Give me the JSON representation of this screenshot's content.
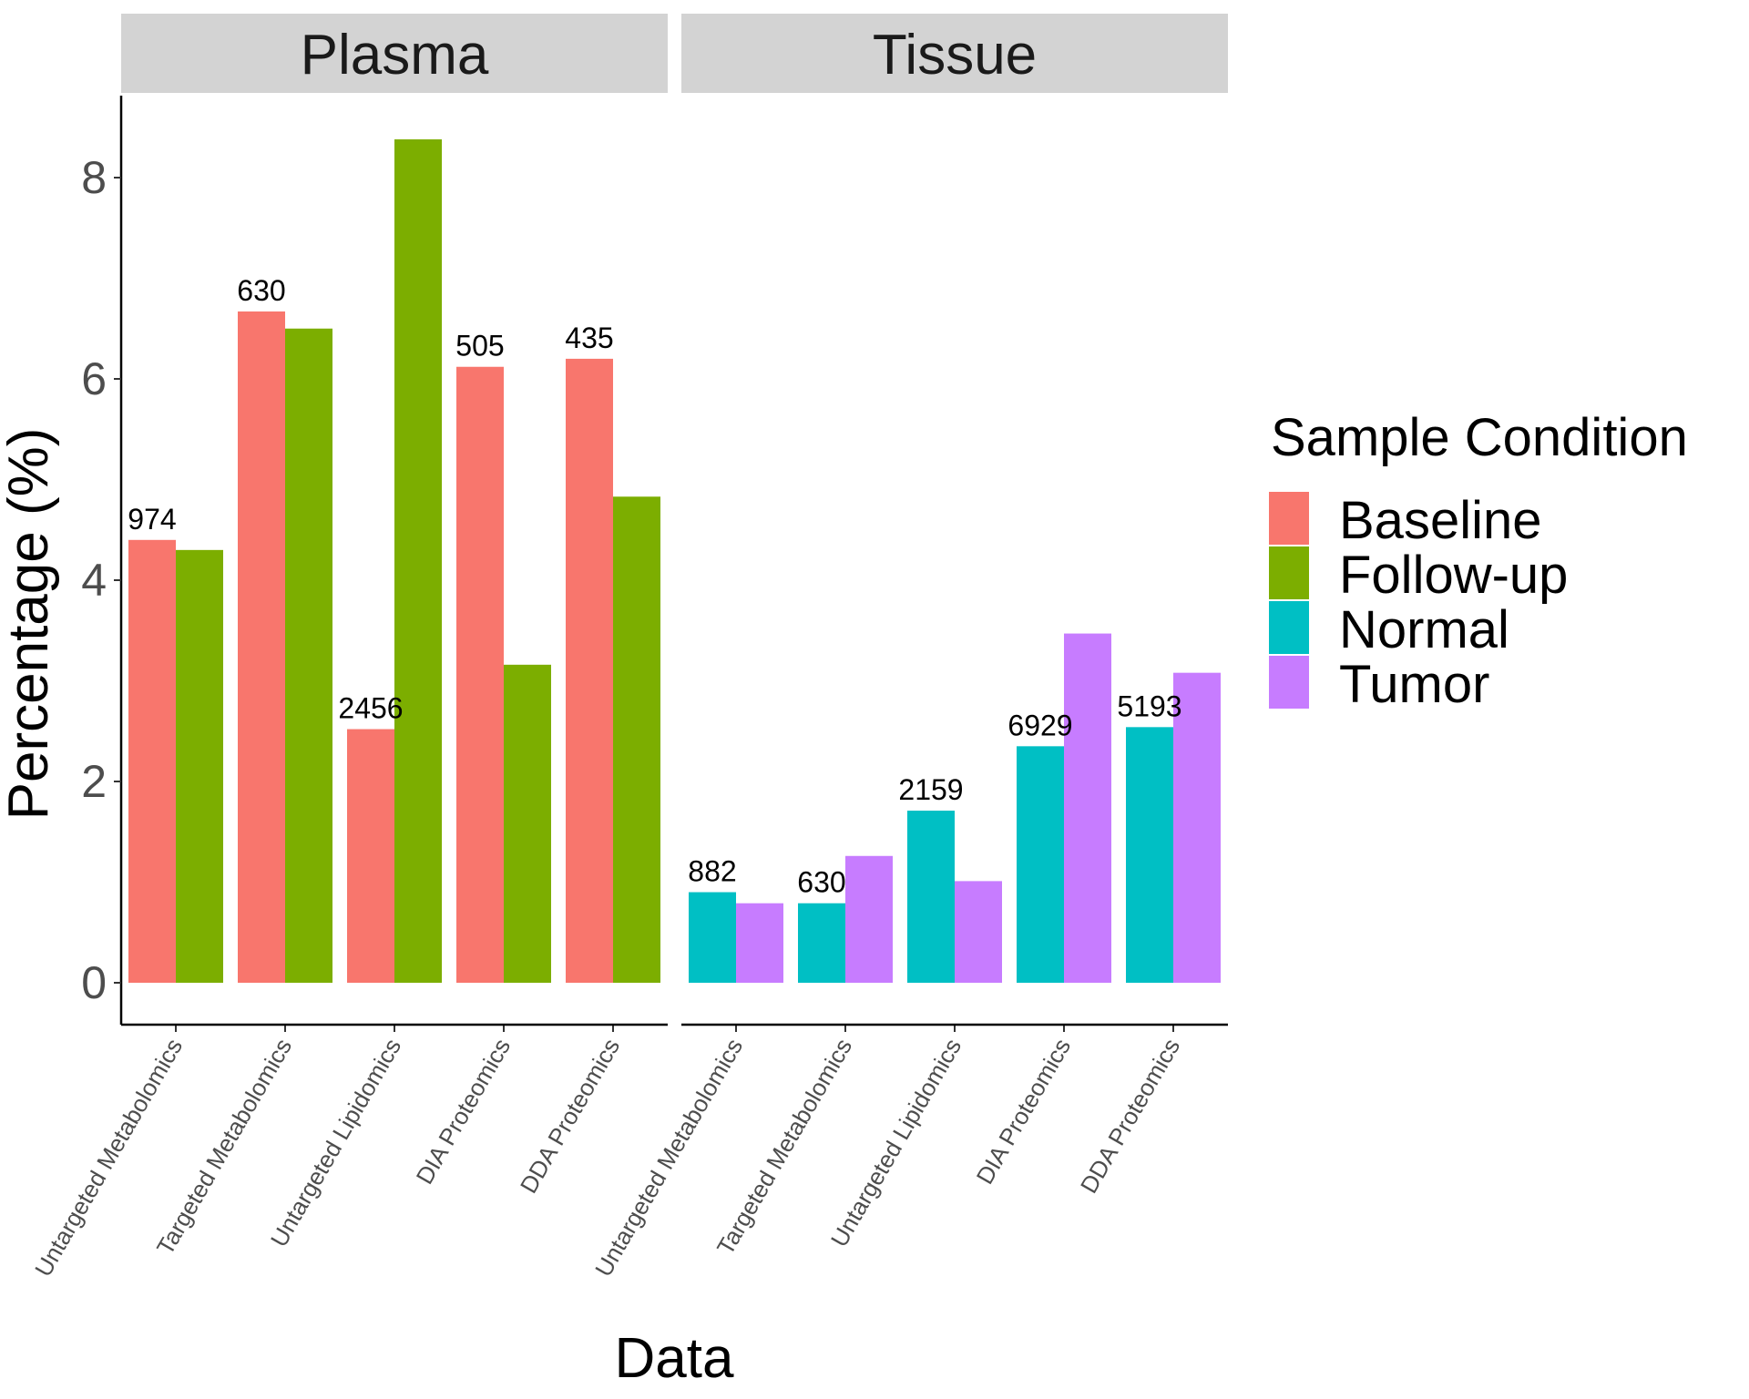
{
  "chart_data": {
    "type": "bar",
    "layout": "faceted grouped bar",
    "xlabel": "Data",
    "ylabel": "Percentage (%)",
    "ylim": [
      0,
      8.8
    ],
    "yticks": [
      0,
      2,
      4,
      6,
      8
    ],
    "grid": false,
    "legend": {
      "title": "Sample Condition",
      "position": "right",
      "entries": [
        {
          "name": "Baseline",
          "color": "#F8766D"
        },
        {
          "name": "Follow-up",
          "color": "#7CAE00"
        },
        {
          "name": "Normal",
          "color": "#00BFC4"
        },
        {
          "name": "Tumor",
          "color": "#C77CFF"
        }
      ]
    },
    "facets": [
      {
        "title": "Plasma",
        "categories": [
          "Untargeted Metabolomics",
          "Targeted Metabolomics",
          "Untargeted Lipidomics",
          "DIA Proteomics",
          "DDA Proteomics"
        ],
        "series": [
          {
            "name": "Baseline",
            "values": [
              4.4,
              6.67,
              2.52,
              6.12,
              6.2
            ]
          },
          {
            "name": "Follow-up",
            "values": [
              4.3,
              6.5,
              8.38,
              3.16,
              4.83
            ]
          }
        ],
        "bar_labels": [
          "974",
          "630",
          "2456",
          "505",
          "435"
        ]
      },
      {
        "title": "Tissue",
        "categories": [
          "Untargeted Metabolomics",
          "Targeted Metabolomics",
          "Untargeted Lipidomics",
          "DIA Proteomics",
          "DDA Proteomics"
        ],
        "series": [
          {
            "name": "Normal",
            "values": [
              0.9,
              0.79,
              1.71,
              2.35,
              2.54
            ]
          },
          {
            "name": "Tumor",
            "values": [
              0.79,
              1.26,
              1.01,
              3.47,
              3.08
            ]
          }
        ],
        "bar_labels": [
          "882",
          "630",
          "2159",
          "6929",
          "5193"
        ]
      }
    ]
  }
}
